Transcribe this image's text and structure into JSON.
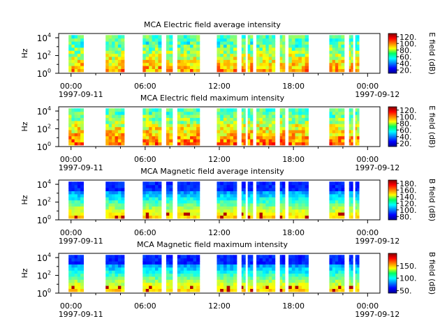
{
  "chart_data": [
    {
      "type": "heatmap",
      "title": "MCA  Electric field average intensity",
      "ylabel": "Hz",
      "ylim": [
        1,
        30000
      ],
      "yscale": "log",
      "yticks": [
        {
          "mant": "10",
          "exp": "0"
        },
        {
          "mant": "10",
          "exp": "2"
        },
        {
          "mant": "10",
          "exp": "4"
        }
      ],
      "xticks": [
        "00:00",
        "06:00",
        "12:00",
        "18:00",
        "00:00"
      ],
      "xdates": [
        "1997-09-11",
        "1997-09-12"
      ],
      "xrange_hours": [
        -1,
        25
      ],
      "colorbar_label": "E field (dB)",
      "colorbar_range": [
        10,
        130
      ],
      "colorbar_ticks": [
        "20.",
        "40.",
        "60.",
        "80.",
        "100.",
        "120."
      ],
      "field": "electric",
      "stat": "avg"
    },
    {
      "type": "heatmap",
      "title": "MCA  Electric field maximum intensity",
      "ylabel": "Hz",
      "ylim": [
        1,
        30000
      ],
      "yscale": "log",
      "yticks": [
        {
          "mant": "10",
          "exp": "0"
        },
        {
          "mant": "10",
          "exp": "2"
        },
        {
          "mant": "10",
          "exp": "4"
        }
      ],
      "xticks": [
        "00:00",
        "06:00",
        "12:00",
        "18:00",
        "00:00"
      ],
      "xdates": [
        "1997-09-11",
        "1997-09-12"
      ],
      "xrange_hours": [
        -1,
        25
      ],
      "colorbar_label": "E field (dB)",
      "colorbar_range": [
        10,
        130
      ],
      "colorbar_ticks": [
        "20.",
        "40.",
        "60.",
        "80.",
        "100.",
        "120."
      ],
      "field": "electric",
      "stat": "max"
    },
    {
      "type": "heatmap",
      "title": "MCA  Magnetic field average intensity",
      "ylabel": "Hz",
      "ylim": [
        1,
        30000
      ],
      "yscale": "log",
      "yticks": [
        {
          "mant": "10",
          "exp": "0"
        },
        {
          "mant": "10",
          "exp": "2"
        },
        {
          "mant": "10",
          "exp": "4"
        }
      ],
      "xticks": [
        "00:00",
        "06:00",
        "12:00",
        "18:00",
        "00:00"
      ],
      "xdates": [
        "1997-09-11",
        "1997-09-12"
      ],
      "xrange_hours": [
        -1,
        25
      ],
      "colorbar_label": "B field (dB)",
      "colorbar_range": [
        70,
        190
      ],
      "colorbar_ticks": [
        "80.",
        "100.",
        "120.",
        "140.",
        "160.",
        "180."
      ],
      "field": "magnetic",
      "stat": "avg"
    },
    {
      "type": "heatmap",
      "title": "MCA  Magnetic field maximum intensity",
      "ylabel": "Hz",
      "ylim": [
        1,
        30000
      ],
      "yscale": "log",
      "yticks": [
        {
          "mant": "10",
          "exp": "0"
        },
        {
          "mant": "10",
          "exp": "2"
        },
        {
          "mant": "10",
          "exp": "4"
        }
      ],
      "xticks": [
        "00:00",
        "06:00",
        "12:00",
        "18:00",
        "00:00"
      ],
      "xdates": [
        "1997-09-11",
        "1997-09-12"
      ],
      "xrange_hours": [
        -1,
        25
      ],
      "colorbar_label": "B field (dB)",
      "colorbar_range": [
        40,
        200
      ],
      "colorbar_ticks": [
        "50.",
        "100.",
        "150."
      ],
      "field": "magnetic",
      "stat": "max"
    }
  ],
  "data_segments_hours": [
    [
      -0.2,
      1.0
    ],
    [
      2.8,
      4.3
    ],
    [
      5.8,
      7.3
    ],
    [
      7.7,
      8.2
    ],
    [
      8.6,
      10.4
    ],
    [
      11.8,
      13.4
    ],
    [
      13.8,
      14.1
    ],
    [
      14.3,
      14.7
    ],
    [
      15.0,
      16.5
    ],
    [
      16.9,
      17.3
    ],
    [
      17.6,
      19.2
    ],
    [
      20.9,
      22.1
    ],
    [
      22.5,
      22.8
    ],
    [
      23.0,
      23.3
    ]
  ]
}
